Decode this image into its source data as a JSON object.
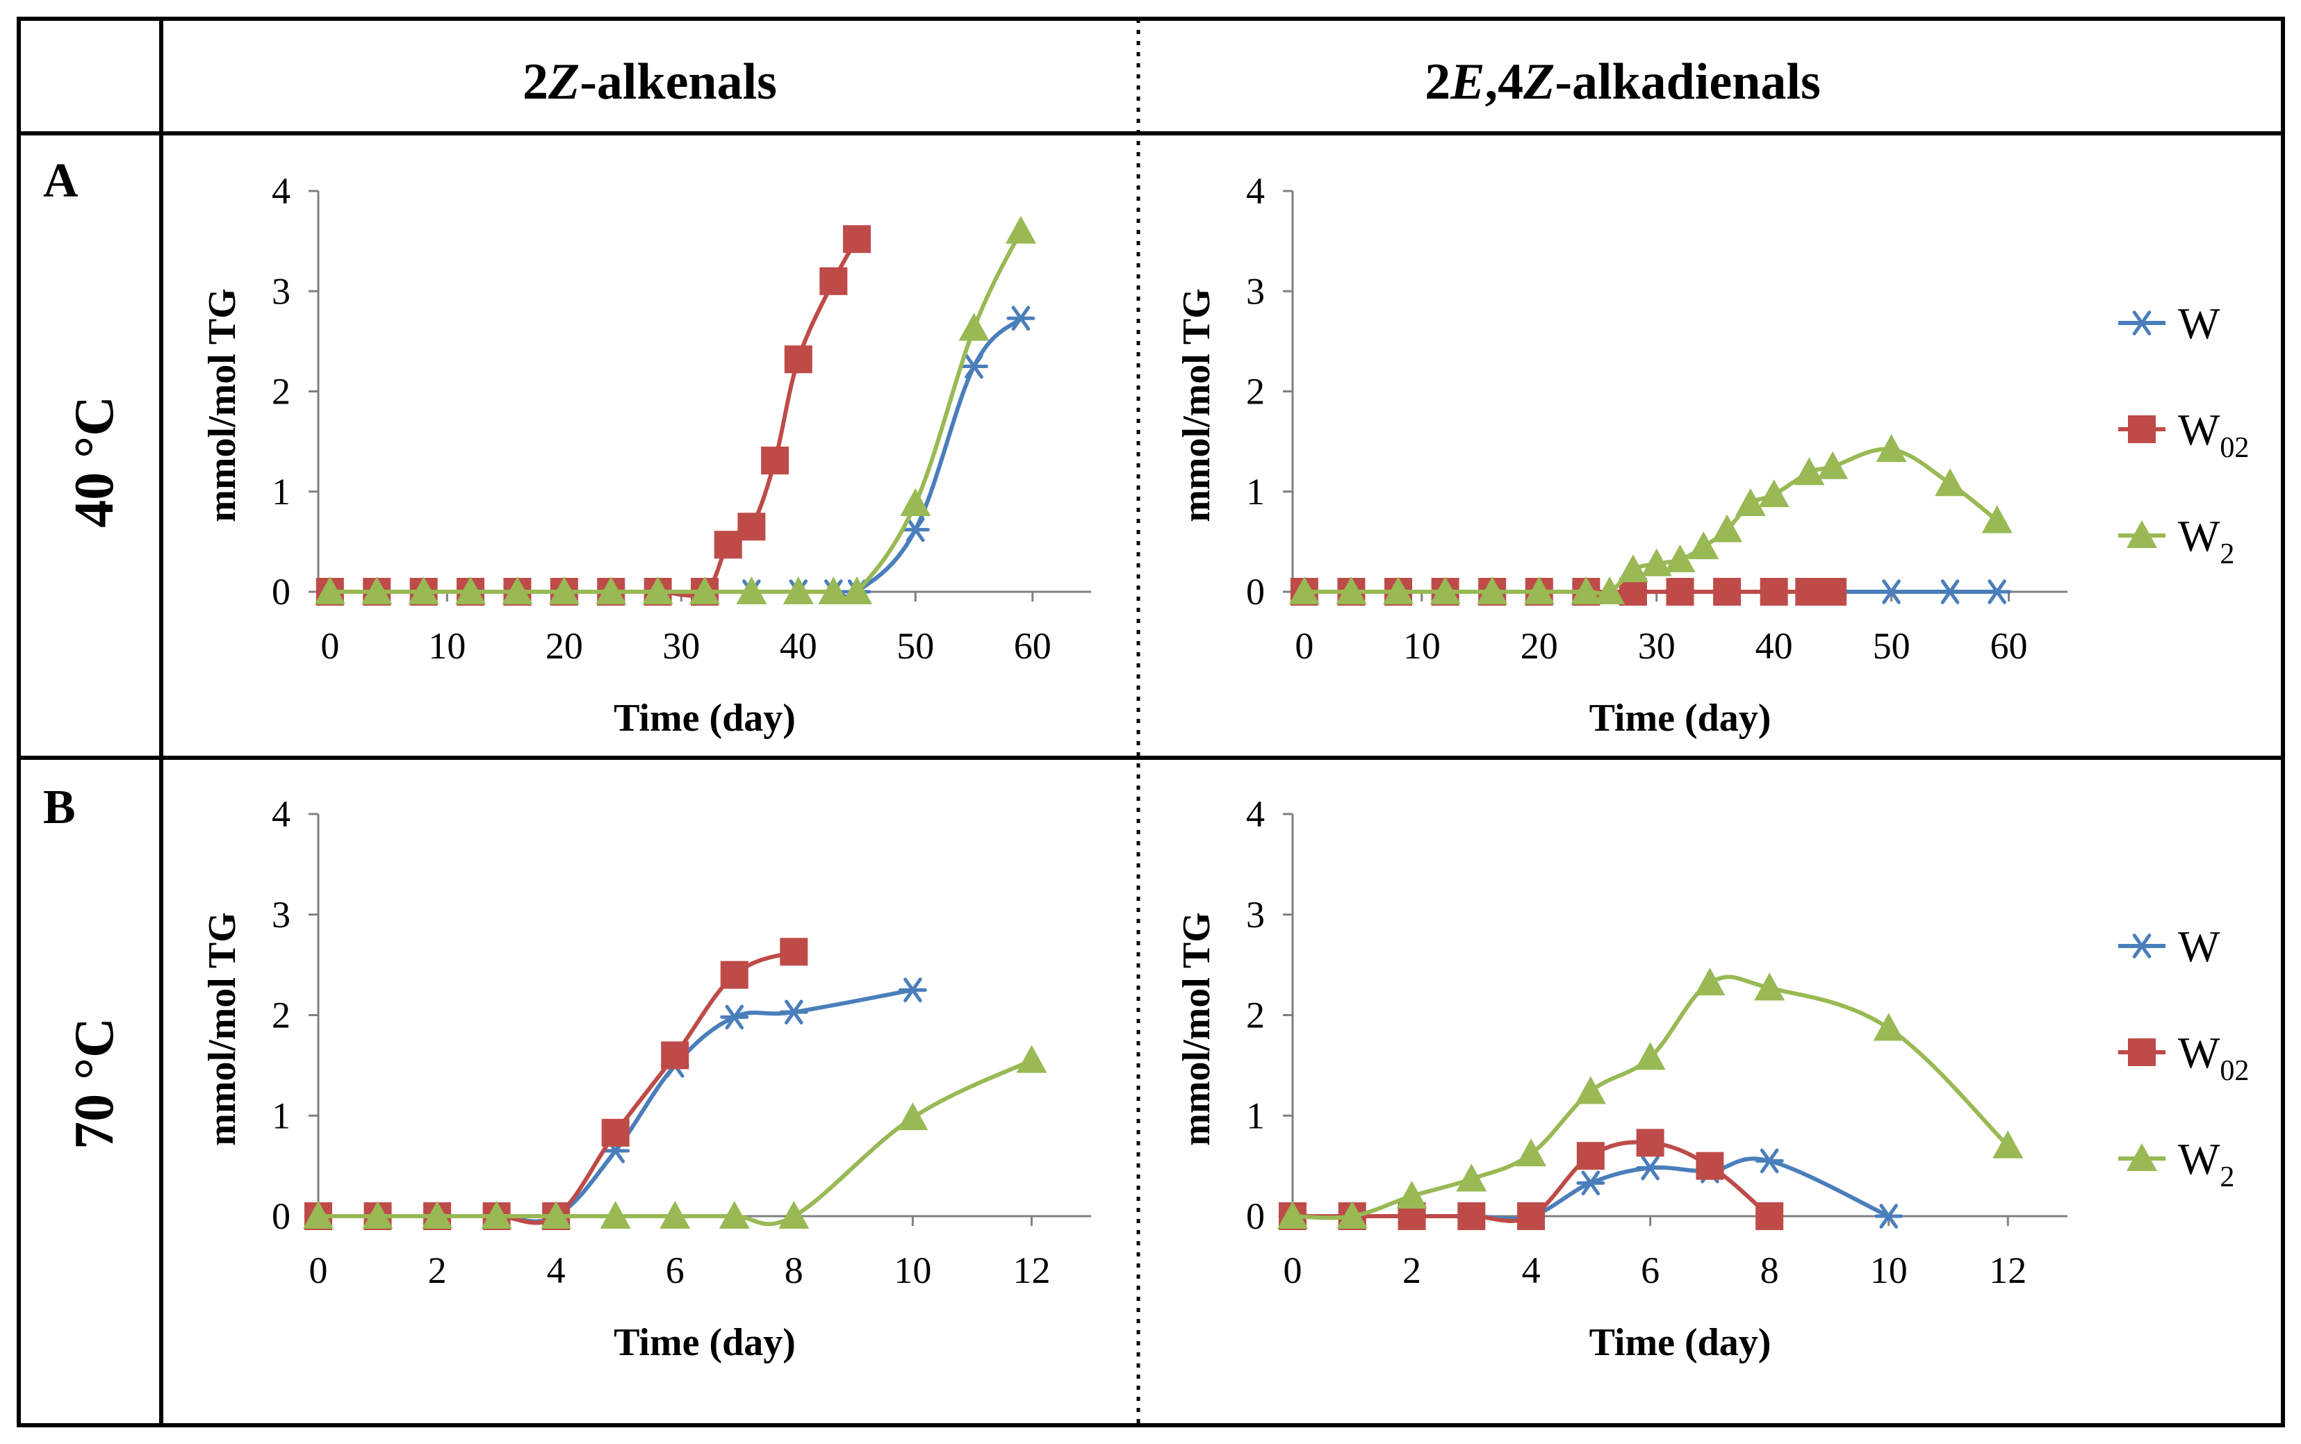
{
  "headers": {
    "col1": {
      "prefix": "2",
      "italic": "Z",
      "suffix": "-alkenals"
    },
    "col2": {
      "prefix": "2",
      "italic1": "E",
      "mid": ",4",
      "italic2": "Z",
      "suffix": "-alkadienals"
    }
  },
  "rows": [
    {
      "letter": "A",
      "temperature": "40 °C"
    },
    {
      "letter": "B",
      "temperature": "70 °C"
    }
  ],
  "legend": [
    {
      "name": "W",
      "base": "W",
      "sub": "",
      "color": "#4A7EBB",
      "marker": "asterisk"
    },
    {
      "name": "W02",
      "base": "W",
      "sub": "02",
      "color": "#BE4B48",
      "marker": "square"
    },
    {
      "name": "W2",
      "base": "W",
      "sub": "2",
      "color": "#98B954",
      "marker": "triangle"
    }
  ],
  "chart_data": [
    {
      "type": "line",
      "panel": "A-left",
      "title": "2Z-alkenals, 40 °C",
      "xlabel": "Time (day)",
      "ylabel": "mmol/mol TG",
      "xlim": [
        -1,
        65
      ],
      "ylim": [
        0,
        4
      ],
      "xticks": [
        "0",
        "10",
        "20",
        "30",
        "40",
        "50",
        "60"
      ],
      "yticks": [
        "0",
        "1",
        "2",
        "3",
        "4"
      ],
      "series": [
        {
          "name": "W",
          "x": [
            0,
            4,
            8,
            12,
            16,
            20,
            24,
            28,
            32,
            36,
            40,
            43,
            45,
            50,
            55,
            59
          ],
          "y": [
            0,
            0,
            0,
            0,
            0,
            0,
            0,
            0,
            0,
            0,
            0,
            0,
            0,
            0.62,
            2.25,
            2.73
          ]
        },
        {
          "name": "W02",
          "x": [
            0,
            4,
            8,
            12,
            16,
            20,
            24,
            28,
            32,
            34,
            36,
            38,
            40,
            43,
            45
          ],
          "y": [
            0,
            0,
            0,
            0,
            0,
            0,
            0,
            0,
            0,
            0.47,
            0.65,
            1.31,
            2.32,
            3.1,
            3.52
          ]
        },
        {
          "name": "W2",
          "x": [
            0,
            4,
            8,
            12,
            16,
            20,
            24,
            28,
            32,
            36,
            40,
            43,
            45,
            50,
            55,
            59
          ],
          "y": [
            0,
            0,
            0,
            0,
            0,
            0,
            0,
            0,
            0,
            0,
            0,
            0,
            0,
            0.88,
            2.63,
            3.6
          ]
        }
      ]
    },
    {
      "type": "line",
      "panel": "A-right",
      "title": "2E,4Z-alkadienals, 40 °C",
      "xlabel": "Time (day)",
      "ylabel": "mmol/mol TG",
      "xlim": [
        -1,
        65
      ],
      "ylim": [
        0,
        4
      ],
      "xticks": [
        "0",
        "10",
        "20",
        "30",
        "40",
        "50",
        "60"
      ],
      "yticks": [
        "0",
        "1",
        "2",
        "3",
        "4"
      ],
      "series": [
        {
          "name": "W",
          "x": [
            0,
            4,
            8,
            12,
            16,
            20,
            24,
            28,
            32,
            36,
            40,
            43,
            45,
            50,
            55,
            59
          ],
          "y": [
            0,
            0,
            0,
            0,
            0,
            0,
            0,
            0,
            0,
            0,
            0,
            0,
            0,
            0,
            0,
            0
          ]
        },
        {
          "name": "W02",
          "x": [
            0,
            4,
            8,
            12,
            16,
            20,
            24,
            28,
            32,
            36,
            40,
            43,
            45
          ],
          "y": [
            0,
            0,
            0,
            0,
            0,
            0,
            0,
            0,
            0,
            0,
            0,
            0,
            0
          ]
        },
        {
          "name": "W2",
          "x": [
            0,
            4,
            8,
            12,
            16,
            20,
            24,
            26,
            28,
            30,
            32,
            34,
            36,
            38,
            40,
            43,
            45,
            50,
            55,
            59
          ],
          "y": [
            0,
            0,
            0,
            0,
            0,
            0,
            0,
            0,
            0.22,
            0.28,
            0.32,
            0.45,
            0.62,
            0.88,
            0.97,
            1.19,
            1.25,
            1.42,
            1.08,
            0.71
          ]
        }
      ]
    },
    {
      "type": "line",
      "panel": "B-left",
      "title": "2Z-alkenals, 70 °C",
      "xlabel": "Time (day)",
      "ylabel": "mmol/mol TG",
      "xlim": [
        0,
        13
      ],
      "ylim": [
        0,
        4
      ],
      "xticks": [
        "0",
        "2",
        "4",
        "6",
        "8",
        "10",
        "12"
      ],
      "yticks": [
        "0",
        "1",
        "2",
        "3",
        "4"
      ],
      "series": [
        {
          "name": "W",
          "x": [
            0,
            1,
            2,
            3,
            4,
            5,
            6,
            7,
            8,
            10
          ],
          "y": [
            0,
            0,
            0,
            0,
            0,
            0.65,
            1.5,
            1.98,
            2.03,
            2.25
          ]
        },
        {
          "name": "W02",
          "x": [
            0,
            1,
            2,
            3,
            4,
            5,
            6,
            7,
            8
          ],
          "y": [
            0,
            0,
            0,
            0,
            0,
            0.83,
            1.6,
            2.4,
            2.63
          ]
        },
        {
          "name": "W2",
          "x": [
            0,
            1,
            2,
            3,
            4,
            5,
            6,
            7,
            8,
            10,
            12
          ],
          "y": [
            0,
            0,
            0,
            0,
            0,
            0,
            0,
            0,
            0,
            0.98,
            1.55
          ]
        }
      ]
    },
    {
      "type": "line",
      "panel": "B-right",
      "title": "2E,4Z-alkadienals, 70 °C",
      "xlabel": "Time (day)",
      "ylabel": "mmol/mol TG",
      "xlim": [
        0,
        13
      ],
      "ylim": [
        0,
        4
      ],
      "xticks": [
        "0",
        "2",
        "4",
        "6",
        "8",
        "10",
        "12"
      ],
      "yticks": [
        "0",
        "1",
        "2",
        "3",
        "4"
      ],
      "series": [
        {
          "name": "W",
          "x": [
            0,
            1,
            2,
            3,
            4,
            5,
            6,
            7,
            8,
            10
          ],
          "y": [
            0,
            0,
            0,
            0,
            0,
            0.33,
            0.48,
            0.45,
            0.55,
            0
          ]
        },
        {
          "name": "W02",
          "x": [
            0,
            1,
            2,
            3,
            4,
            5,
            6,
            7,
            8
          ],
          "y": [
            0,
            0,
            0,
            0,
            0,
            0.6,
            0.73,
            0.5,
            0
          ]
        },
        {
          "name": "W2",
          "x": [
            0,
            1,
            2,
            3,
            4,
            5,
            6,
            7,
            8,
            10,
            12
          ],
          "y": [
            0,
            0,
            0.2,
            0.37,
            0.62,
            1.24,
            1.58,
            2.32,
            2.27,
            1.87,
            0.7
          ]
        }
      ]
    }
  ]
}
